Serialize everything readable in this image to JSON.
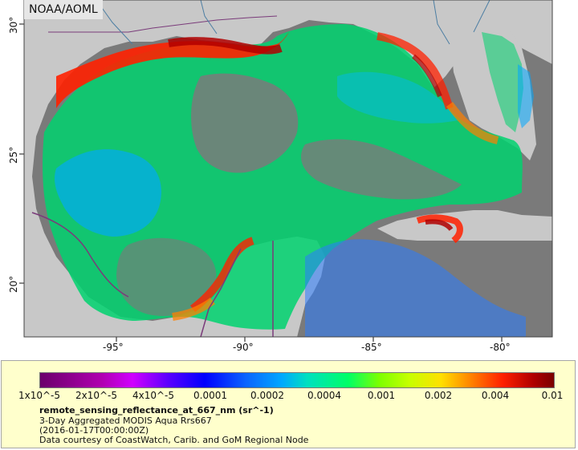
{
  "badge": "NOAA/AOML",
  "map": {
    "lon_labels": [
      "-95°",
      "-90°",
      "-85°",
      "-80°"
    ],
    "lat_labels": [
      "30°",
      "25°",
      "20°"
    ],
    "colors": {
      "land": "#c8c8c8",
      "nodata": "#7a7a7a",
      "border": "#7a3b7a",
      "ocean_low": "#00ff66",
      "ocean_mid": "#00d0ff",
      "coast_high": "#ff2000",
      "coast_peak": "#b00000"
    }
  },
  "legend": {
    "ticks": [
      "1x10^-5",
      "2x10^-5",
      "4x10^-5",
      "0.0001",
      "0.0002",
      "0.0004",
      "0.001",
      "0.002",
      "0.004",
      "0.01"
    ],
    "title": "remote_sensing_reflectance_at_667_nm (sr^-1)",
    "line1": "3-Day Aggregated MODIS Aqua Rrs667",
    "line2": "(2016-01-17T00:00:00Z)",
    "line3": "Data courtesy of CoastWatch, Carib. and GoM Regional Node"
  }
}
